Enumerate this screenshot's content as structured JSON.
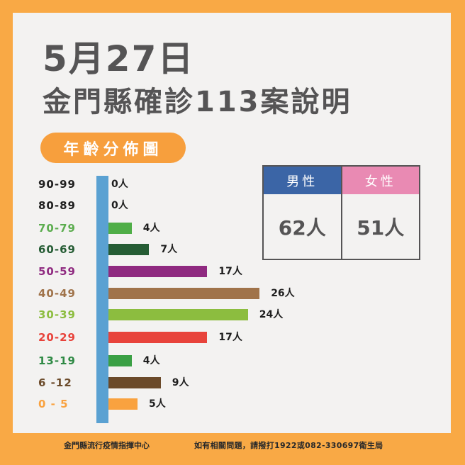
{
  "header": {
    "date": "5月27日",
    "title": "金門縣確診113案說明"
  },
  "section_label": "年齡分佈圖",
  "gender": {
    "male": {
      "label": "男性",
      "value": "62人",
      "color": "#3b65a6"
    },
    "female": {
      "label": "女性",
      "value": "51人",
      "color": "#e98ab3"
    }
  },
  "footer": {
    "org": "金門縣流行疫情指揮中心",
    "contact": "如有相關問題，請撥打1922或082-330697衛生局"
  },
  "colors": {
    "background": "#f9a945",
    "panel": "#f3f2f1",
    "axis": "#5aa1d2",
    "title_text": "#555455"
  },
  "chart_data": {
    "type": "bar",
    "orientation": "horizontal",
    "title": "年齡分佈圖",
    "xlabel": "",
    "ylabel": "年齡",
    "unit": "人",
    "categories": [
      "90-99",
      "80-89",
      "70-79",
      "60-69",
      "50-59",
      "40-49",
      "30-39",
      "20-29",
      "13-19",
      "6 -12",
      "0 - 5"
    ],
    "values": [
      0,
      0,
      4,
      7,
      17,
      26,
      24,
      17,
      4,
      9,
      5
    ],
    "value_labels": [
      "0人",
      "0人",
      "4人",
      "7人",
      "17人",
      "26人",
      "24人",
      "17人",
      "4人",
      "9人",
      "5人"
    ],
    "bar_colors": [
      "#1e1e1e",
      "#1e1e1e",
      "#4fae47",
      "#255c34",
      "#8f2a80",
      "#a0734a",
      "#8cbd3f",
      "#e8433b",
      "#3aa045",
      "#6b4a2a",
      "#f9a23f"
    ],
    "label_colors": [
      "#1e1e1e",
      "#1e1e1e",
      "#5cad4f",
      "#255c34",
      "#8f2a80",
      "#a0734a",
      "#8cbd3f",
      "#e8433b",
      "#2f8a45",
      "#6b4a2a",
      "#f9a23f"
    ],
    "grid": false,
    "legend": null,
    "totals": {
      "male": 62,
      "female": 51,
      "total": 113
    }
  }
}
